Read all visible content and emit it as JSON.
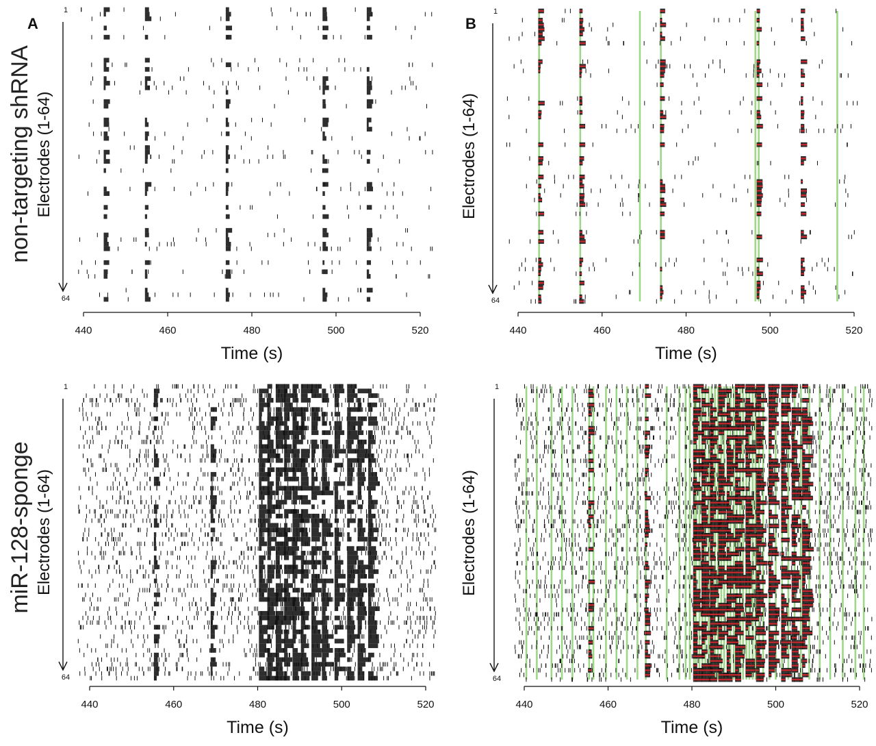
{
  "figure": {
    "panel_labels": [
      "A",
      "B"
    ],
    "row_labels": [
      "non-targeting shRNA",
      "miR-128-sponge"
    ]
  },
  "chart_data": [
    {
      "type": "scatter",
      "subtype": "spike-raster",
      "panel": "A",
      "row": "non-targeting shRNA",
      "xlabel": "Time (s)",
      "ylabel": "Electrodes (1-64)",
      "xlim": [
        437,
        523
      ],
      "xticks": [
        440,
        460,
        480,
        500,
        520
      ],
      "ylim": [
        1,
        64
      ],
      "y_end_labels": [
        "1",
        "64"
      ],
      "spike_color": "#111111",
      "network_bursts_s": [
        445,
        454.8,
        474,
        497,
        507.5
      ],
      "burst_marks": false,
      "network_burst_marks": []
    },
    {
      "type": "scatter",
      "subtype": "spike-raster",
      "panel": "B",
      "row": "non-targeting shRNA",
      "xlabel": "Time (s)",
      "ylabel": "Electrodes (1-64)",
      "xlim": [
        437,
        523
      ],
      "xticks": [
        440,
        460,
        480,
        500,
        520
      ],
      "ylim": [
        1,
        64
      ],
      "y_end_labels": [
        "1",
        "64"
      ],
      "spike_color": "#111111",
      "burst_color": "#c0282d",
      "network_burst_color": "#6cc24a",
      "network_bursts_s": [
        445,
        454.8,
        474,
        497,
        507.5
      ],
      "burst_marks": true,
      "network_burst_marks": [
        445,
        454.8,
        469,
        474,
        496.5,
        497.3,
        516
      ]
    },
    {
      "type": "scatter",
      "subtype": "spike-raster",
      "panel": "A",
      "row": "miR-128-sponge",
      "xlabel": "Time (s)",
      "ylabel": "Electrodes (1-64)",
      "xlim": [
        437,
        523
      ],
      "xticks": [
        440,
        460,
        480,
        500,
        520
      ],
      "ylim": [
        1,
        64
      ],
      "y_end_labels": [
        "1",
        "64"
      ],
      "spike_color": "#111111",
      "network_bursts_s": [
        455.5,
        469,
        480.5,
        482.5,
        484.5,
        486.5,
        488.5,
        490.5,
        493,
        495.5,
        498.5,
        501.5,
        504,
        506.5
      ],
      "burst_marks": false,
      "network_burst_marks": []
    },
    {
      "type": "scatter",
      "subtype": "spike-raster",
      "panel": "B",
      "row": "miR-128-sponge",
      "xlabel": "Time (s)",
      "ylabel": "Electrodes (1-64)",
      "xlim": [
        437,
        523
      ],
      "xticks": [
        440,
        460,
        480,
        500,
        520
      ],
      "ylim": [
        1,
        64
      ],
      "y_end_labels": [
        "1",
        "64"
      ],
      "spike_color": "#111111",
      "burst_color": "#c0282d",
      "network_burst_color": "#6cc24a",
      "network_bursts_s": [
        455.5,
        469,
        480.5,
        482.5,
        484.5,
        486.5,
        488.5,
        490.5,
        493,
        495.5,
        498.5,
        501.5,
        504,
        506.5
      ],
      "burst_marks": true,
      "network_burst_marks": [
        440.5,
        443,
        446.5,
        449,
        451.5,
        455.5,
        456.5,
        459.5,
        462,
        464.5,
        467,
        469,
        474,
        477,
        478.5,
        479.5,
        480.5,
        481,
        481.8,
        482.5,
        483.2,
        484,
        484.7,
        485.5,
        486.2,
        487,
        487.7,
        488.5,
        489.2,
        490,
        490.7,
        491.5,
        492.2,
        493,
        493.7,
        494.5,
        495.2,
        496,
        497,
        498.5,
        500,
        501.5,
        503,
        504.5,
        506,
        508,
        510.5,
        513,
        516,
        519,
        521
      ]
    }
  ]
}
